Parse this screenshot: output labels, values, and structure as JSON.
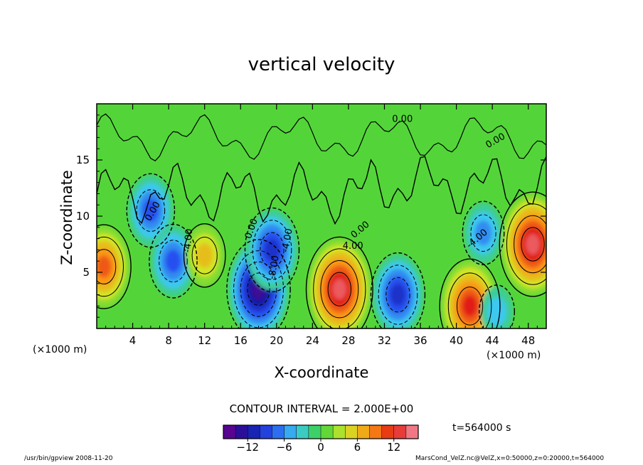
{
  "title": "vertical velocity",
  "xlabel": "X-coordinate",
  "ylabel": "Z-coordinate",
  "x_unit": "(×1000 m)",
  "contour_interval": "CONTOUR INTERVAL = 2.000E+00",
  "time": "t=564000 s",
  "footer_left": "/usr/bin/gpview  2008-11-20",
  "footer_right": "MarsCond_VelZ.nc@VelZ,x=0:50000,z=0:20000,t=564000",
  "chart_data": {
    "type": "heatmap",
    "title": "vertical velocity",
    "xlabel": "X-coordinate",
    "ylabel": "Z-coordinate",
    "x_unit": "×1000 m",
    "xlim": [
      0,
      50
    ],
    "ylim": [
      0,
      20
    ],
    "x_ticks": [
      4,
      8,
      12,
      16,
      20,
      24,
      28,
      32,
      36,
      40,
      44,
      48
    ],
    "y_ticks": [
      5,
      10,
      15
    ],
    "contour_labels": [
      "0.00",
      "0.00",
      "0.00",
      "0.00",
      "0.00",
      "4.00",
      "-4.00",
      "-8.00",
      "-4.00",
      "-4.00"
    ],
    "colorbar": {
      "ticks": [
        -12,
        -6,
        0,
        6,
        12
      ],
      "range": [
        -16,
        16
      ],
      "interval": 2
    },
    "features": [
      {
        "x": 0.8,
        "z": 5.5,
        "value": 10
      },
      {
        "x": 6,
        "z": 10.5,
        "value": -8
      },
      {
        "x": 8.5,
        "z": 6,
        "value": -8
      },
      {
        "x": 12,
        "z": 6.5,
        "value": 6
      },
      {
        "x": 18,
        "z": 3.5,
        "value": -13
      },
      {
        "x": 19.5,
        "z": 7,
        "value": -10
      },
      {
        "x": 27,
        "z": 3.5,
        "value": 14
      },
      {
        "x": 33.5,
        "z": 3,
        "value": -10
      },
      {
        "x": 41.5,
        "z": 2,
        "value": 12
      },
      {
        "x": 44.5,
        "z": 1.5,
        "value": -4
      },
      {
        "x": 43,
        "z": 8.5,
        "value": -6
      },
      {
        "x": 48.5,
        "z": 7.5,
        "value": 14
      }
    ]
  }
}
